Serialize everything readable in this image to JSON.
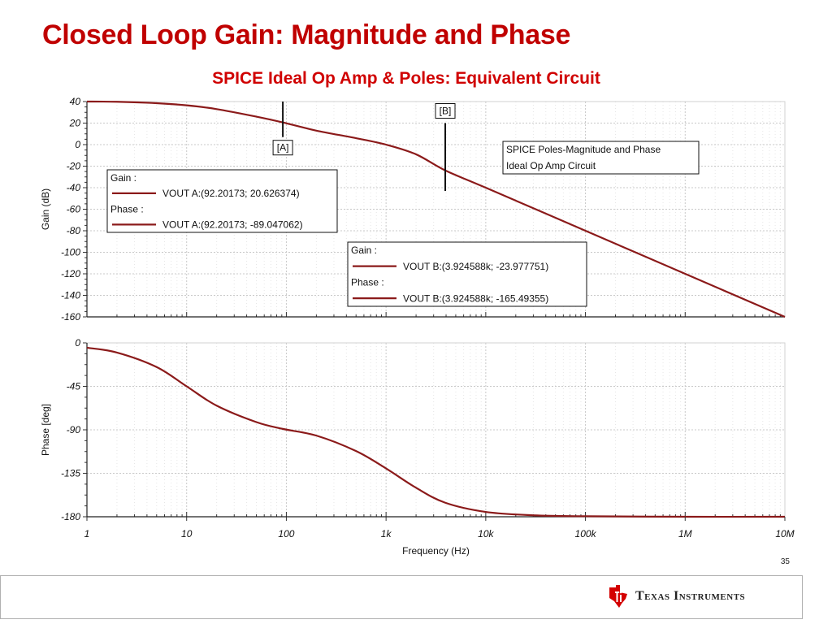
{
  "slide": {
    "title": "Closed Loop Gain: Magnitude and Phase",
    "subtitle": "SPICE Ideal Op Amp & Poles:  Equivalent Circuit",
    "page_number": "35",
    "footer_brand": "Texas Instruments"
  },
  "chart_data": [
    {
      "type": "line",
      "xscale": "log",
      "xlim": [
        1,
        10000000
      ],
      "ylim": [
        -160,
        40
      ],
      "ylabel": "Gain (dB)",
      "xlabel": "",
      "yticks": [
        "40",
        "20",
        "0",
        "-20",
        "-40",
        "-60",
        "-80",
        "-100",
        "-120",
        "-140",
        "-160"
      ],
      "grid": true,
      "series": [
        {
          "name": "VOUT",
          "color": "#8b1a1a",
          "x": [
            1,
            2,
            5,
            10,
            20,
            50,
            92.20173,
            200,
            500,
            1000,
            2000,
            3924.588,
            10000,
            100000,
            1000000,
            10000000
          ],
          "y": [
            40,
            39.8,
            38.5,
            36.5,
            33,
            26,
            20.626374,
            13,
            6,
            0,
            -9,
            -23.977751,
            -40,
            -80,
            -120,
            -160
          ]
        }
      ],
      "cursors": [
        {
          "label": "[A]",
          "x": 92.20173,
          "y_from": 40,
          "y_to": 7
        },
        {
          "label": "[B]",
          "x": 3924.588,
          "y_from": 20,
          "y_to": -43
        }
      ],
      "annotation_lines": [
        "SPICE Poles-Magnitude and Phase",
        "Ideal Op Amp Circuit"
      ],
      "legend_boxes": [
        {
          "gain_title": "Gain :",
          "gain_entry": "VOUT   A:(92.20173; 20.626374)",
          "phase_title": "Phase :",
          "phase_entry": "VOUT  A:(92.20173; -89.047062)"
        },
        {
          "gain_title": "Gain :",
          "gain_entry": "VOUT    B:(3.924588k; -23.977751)",
          "phase_title": "Phase :",
          "phase_entry": "VOUT    B:(3.924588k; -165.49355)"
        }
      ]
    },
    {
      "type": "line",
      "xscale": "log",
      "xlim": [
        1,
        10000000
      ],
      "ylim": [
        -180,
        0
      ],
      "ylabel": "Phase [deg]",
      "xlabel": "Frequency (Hz)",
      "yticks": [
        "0",
        "-45",
        "-90",
        "-135",
        "-180"
      ],
      "xticks": [
        "1",
        "10",
        "100",
        "1k",
        "10k",
        "100k",
        "1M",
        "10M"
      ],
      "grid": true,
      "series": [
        {
          "name": "VOUT",
          "color": "#8b1a1a",
          "x": [
            1,
            2,
            5,
            10,
            20,
            50,
            92.20173,
            200,
            500,
            1000,
            2000,
            3924.588,
            10000,
            30000,
            100000,
            1000000,
            10000000
          ],
          "y": [
            -5,
            -10,
            -25,
            -45,
            -65,
            -82,
            -89.047062,
            -96,
            -112,
            -130,
            -150,
            -165.49355,
            -175,
            -178.5,
            -179.5,
            -180,
            -180
          ]
        }
      ]
    }
  ]
}
